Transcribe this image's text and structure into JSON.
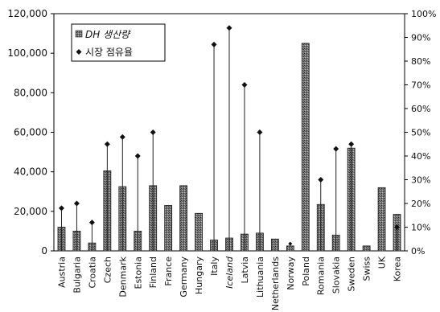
{
  "chart_data": {
    "type": "bar",
    "categories": [
      "Austria",
      "Bulgaria",
      "Croatia",
      "Czech",
      "Denmark",
      "Estonia",
      "Finland",
      "France",
      "Germany",
      "Hungary",
      "Italy",
      "Iceland",
      "Latvia",
      "Lithuania",
      "Netherlands",
      "Norway",
      "Poland",
      "Romania",
      "Slovakia",
      "Sweden",
      "Swiss",
      "UK",
      "Korea"
    ],
    "series": [
      {
        "name": "DH 생산량",
        "kind": "bar",
        "axis": "left",
        "values": [
          12000,
          10000,
          4000,
          40500,
          32500,
          10000,
          33000,
          23000,
          33000,
          19000,
          5500,
          6500,
          8500,
          9000,
          6000,
          2500,
          105000,
          23500,
          8000,
          52000,
          2500,
          32000,
          18500
        ]
      },
      {
        "name": "시장 점유율",
        "kind": "marker",
        "axis": "right",
        "values": [
          18,
          20,
          12,
          45,
          48,
          40,
          50,
          null,
          null,
          null,
          87,
          94,
          70,
          50,
          null,
          3,
          null,
          30,
          43,
          45,
          null,
          null,
          10
        ]
      }
    ],
    "left_axis": {
      "min": 0,
      "max": 120000,
      "ticks": [
        "0",
        "20,000",
        "40,000",
        "60,000",
        "80,000",
        "100,000",
        "120,000"
      ]
    },
    "right_axis": {
      "min": 0,
      "max": 100,
      "ticks": [
        "0%",
        "10%",
        "20%",
        "30%",
        "40%",
        "50%",
        "60%",
        "70%",
        "80%",
        "90%",
        "100%"
      ]
    },
    "legend": {
      "position": "top-left",
      "items": [
        "DH 생산량",
        "시장 점유율"
      ]
    },
    "colors": {
      "bar": "#6e6e6e",
      "bar_dark": "#2a2a2a",
      "marker": "#111111",
      "axis": "#000000"
    }
  }
}
